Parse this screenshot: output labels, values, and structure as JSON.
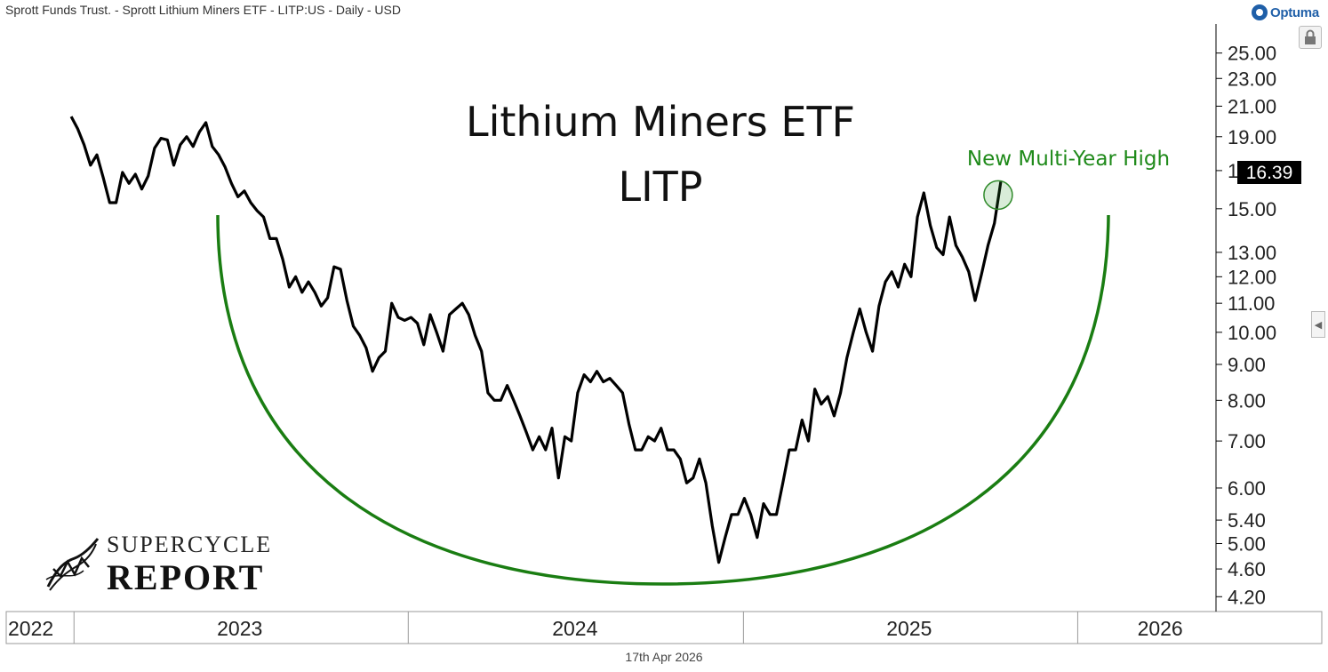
{
  "header": {
    "instrument": "Sprott Funds Trust. - Sprott Lithium Miners ETF - LITP:US - Daily - USD",
    "logo_text": "Optuma"
  },
  "footer": {
    "date": "17th Apr 2026"
  },
  "branding": {
    "line1": "SUPERCYCLE",
    "line2": "REPORT"
  },
  "icons": {
    "lock": "lock-icon",
    "side": "chevron-left-icon",
    "logo": "optuma-logo-icon",
    "brand": "supercycle-logo-icon"
  },
  "colors": {
    "price": "#000000",
    "arc": "#1a7d12",
    "annotation": "#1f8a1a",
    "axis": "#000000"
  },
  "chart_data": {
    "type": "line",
    "title": "Lithium Miners ETF",
    "subtitle": "LITP",
    "annotation": "New Multi-Year High",
    "last_price": "16.39",
    "y_scale": "log",
    "ylim": [
      4.0,
      27.5
    ],
    "y_ticks": [
      "25.00",
      "23.00",
      "21.00",
      "19.00",
      "17.00",
      "15.00",
      "13.00",
      "12.00",
      "11.00",
      "10.00",
      "9.00",
      "8.00",
      "7.00",
      "6.00",
      "5.40",
      "5.00",
      "4.60",
      "4.20"
    ],
    "x_range": [
      "2022-10-19",
      "2026-06-01"
    ],
    "x_labels": [
      {
        "label": "2022",
        "date": "2022-10-19"
      },
      {
        "label": "2023",
        "date": "2023-07-01"
      },
      {
        "label": "2024",
        "date": "2024-07-01"
      },
      {
        "label": "2025",
        "date": "2025-07-01"
      },
      {
        "label": "2026",
        "date": "2026-04-01"
      }
    ],
    "x_separators": [
      "2023-01-01",
      "2024-01-01",
      "2025-01-01",
      "2026-01-01"
    ],
    "series": [
      {
        "points": [
          [
            "2022-12-29",
            20.3
          ],
          [
            "2023-01-05",
            19.5
          ],
          [
            "2023-01-12",
            18.5
          ],
          [
            "2023-01-19",
            17.3
          ],
          [
            "2023-01-26",
            17.9
          ],
          [
            "2023-02-02",
            16.6
          ],
          [
            "2023-02-09",
            15.3
          ],
          [
            "2023-02-16",
            15.3
          ],
          [
            "2023-02-23",
            16.9
          ],
          [
            "2023-03-02",
            16.3
          ],
          [
            "2023-03-09",
            16.8
          ],
          [
            "2023-03-16",
            16.0
          ],
          [
            "2023-03-23",
            16.7
          ],
          [
            "2023-03-30",
            18.3
          ],
          [
            "2023-04-06",
            18.9
          ],
          [
            "2023-04-13",
            18.8
          ],
          [
            "2023-04-20",
            17.3
          ],
          [
            "2023-04-27",
            18.5
          ],
          [
            "2023-05-04",
            19.0
          ],
          [
            "2023-05-11",
            18.4
          ],
          [
            "2023-05-18",
            19.3
          ],
          [
            "2023-05-25",
            19.9
          ],
          [
            "2023-06-01",
            18.4
          ],
          [
            "2023-06-08",
            17.9
          ],
          [
            "2023-06-15",
            17.2
          ],
          [
            "2023-06-22",
            16.3
          ],
          [
            "2023-06-29",
            15.6
          ],
          [
            "2023-07-06",
            15.9
          ],
          [
            "2023-07-13",
            15.3
          ],
          [
            "2023-07-20",
            14.9
          ],
          [
            "2023-07-27",
            14.6
          ],
          [
            "2023-08-03",
            13.6
          ],
          [
            "2023-08-10",
            13.6
          ],
          [
            "2023-08-17",
            12.7
          ],
          [
            "2023-08-24",
            11.6
          ],
          [
            "2023-08-31",
            12.0
          ],
          [
            "2023-09-07",
            11.4
          ],
          [
            "2023-09-14",
            11.8
          ],
          [
            "2023-09-21",
            11.4
          ],
          [
            "2023-09-28",
            10.9
          ],
          [
            "2023-10-05",
            11.2
          ],
          [
            "2023-10-12",
            12.4
          ],
          [
            "2023-10-19",
            12.3
          ],
          [
            "2023-10-26",
            11.1
          ],
          [
            "2023-11-02",
            10.2
          ],
          [
            "2023-11-09",
            9.9
          ],
          [
            "2023-11-16",
            9.5
          ],
          [
            "2023-11-23",
            8.8
          ],
          [
            "2023-11-30",
            9.2
          ],
          [
            "2023-12-07",
            9.4
          ],
          [
            "2023-12-14",
            11.0
          ],
          [
            "2023-12-21",
            10.5
          ],
          [
            "2023-12-28",
            10.4
          ],
          [
            "2024-01-04",
            10.5
          ],
          [
            "2024-01-11",
            10.3
          ],
          [
            "2024-01-18",
            9.6
          ],
          [
            "2024-01-25",
            10.6
          ],
          [
            "2024-02-01",
            10.0
          ],
          [
            "2024-02-08",
            9.4
          ],
          [
            "2024-02-15",
            10.6
          ],
          [
            "2024-02-22",
            10.8
          ],
          [
            "2024-02-29",
            11.0
          ],
          [
            "2024-03-07",
            10.6
          ],
          [
            "2024-03-14",
            9.9
          ],
          [
            "2024-03-21",
            9.4
          ],
          [
            "2024-03-28",
            8.2
          ],
          [
            "2024-04-04",
            8.0
          ],
          [
            "2024-04-11",
            8.0
          ],
          [
            "2024-04-18",
            8.4
          ],
          [
            "2024-04-25",
            8.0
          ],
          [
            "2024-05-02",
            7.6
          ],
          [
            "2024-05-09",
            7.2
          ],
          [
            "2024-05-16",
            6.8
          ],
          [
            "2024-05-23",
            7.1
          ],
          [
            "2024-05-30",
            6.8
          ],
          [
            "2024-06-06",
            7.3
          ],
          [
            "2024-06-13",
            6.2
          ],
          [
            "2024-06-20",
            7.1
          ],
          [
            "2024-06-27",
            7.0
          ],
          [
            "2024-07-04",
            8.2
          ],
          [
            "2024-07-11",
            8.7
          ],
          [
            "2024-07-18",
            8.5
          ],
          [
            "2024-07-25",
            8.8
          ],
          [
            "2024-08-01",
            8.5
          ],
          [
            "2024-08-08",
            8.6
          ],
          [
            "2024-08-15",
            8.4
          ],
          [
            "2024-08-22",
            8.2
          ],
          [
            "2024-08-29",
            7.4
          ],
          [
            "2024-09-05",
            6.8
          ],
          [
            "2024-09-12",
            6.8
          ],
          [
            "2024-09-19",
            7.1
          ],
          [
            "2024-09-26",
            7.0
          ],
          [
            "2024-10-03",
            7.3
          ],
          [
            "2024-10-10",
            6.8
          ],
          [
            "2024-10-17",
            6.8
          ],
          [
            "2024-10-24",
            6.6
          ],
          [
            "2024-10-31",
            6.1
          ],
          [
            "2024-11-07",
            6.2
          ],
          [
            "2024-11-14",
            6.6
          ],
          [
            "2024-11-21",
            6.1
          ],
          [
            "2024-11-28",
            5.3
          ],
          [
            "2024-12-05",
            4.7
          ],
          [
            "2024-12-12",
            5.1
          ],
          [
            "2024-12-19",
            5.5
          ],
          [
            "2024-12-26",
            5.5
          ],
          [
            "2025-01-02",
            5.8
          ],
          [
            "2025-01-09",
            5.5
          ],
          [
            "2025-01-16",
            5.1
          ],
          [
            "2025-01-23",
            5.7
          ],
          [
            "2025-01-30",
            5.5
          ],
          [
            "2025-02-06",
            5.5
          ],
          [
            "2025-02-13",
            6.1
          ],
          [
            "2025-02-20",
            6.8
          ],
          [
            "2025-02-27",
            6.8
          ],
          [
            "2025-03-06",
            7.5
          ],
          [
            "2025-03-13",
            7.0
          ],
          [
            "2025-03-20",
            8.3
          ],
          [
            "2025-03-27",
            7.9
          ],
          [
            "2025-04-03",
            8.1
          ],
          [
            "2025-04-10",
            7.6
          ],
          [
            "2025-04-17",
            8.2
          ],
          [
            "2025-04-24",
            9.2
          ],
          [
            "2025-05-01",
            10.0
          ],
          [
            "2025-05-08",
            10.8
          ],
          [
            "2025-05-15",
            10.0
          ],
          [
            "2025-05-22",
            9.4
          ],
          [
            "2025-05-29",
            10.9
          ],
          [
            "2025-06-05",
            11.8
          ],
          [
            "2025-06-12",
            12.2
          ],
          [
            "2025-06-19",
            11.6
          ],
          [
            "2025-06-26",
            12.5
          ],
          [
            "2025-07-03",
            12.0
          ],
          [
            "2025-07-10",
            14.6
          ],
          [
            "2025-07-17",
            15.8
          ],
          [
            "2025-07-24",
            14.2
          ],
          [
            "2025-07-31",
            13.2
          ],
          [
            "2025-08-07",
            12.9
          ],
          [
            "2025-08-14",
            14.6
          ],
          [
            "2025-08-21",
            13.3
          ],
          [
            "2025-08-28",
            12.8
          ],
          [
            "2025-09-04",
            12.2
          ],
          [
            "2025-09-11",
            11.1
          ],
          [
            "2025-09-18",
            12.1
          ],
          [
            "2025-09-25",
            13.3
          ],
          [
            "2025-10-02",
            14.3
          ],
          [
            "2025-10-09",
            16.39
          ]
        ]
      }
    ]
  }
}
